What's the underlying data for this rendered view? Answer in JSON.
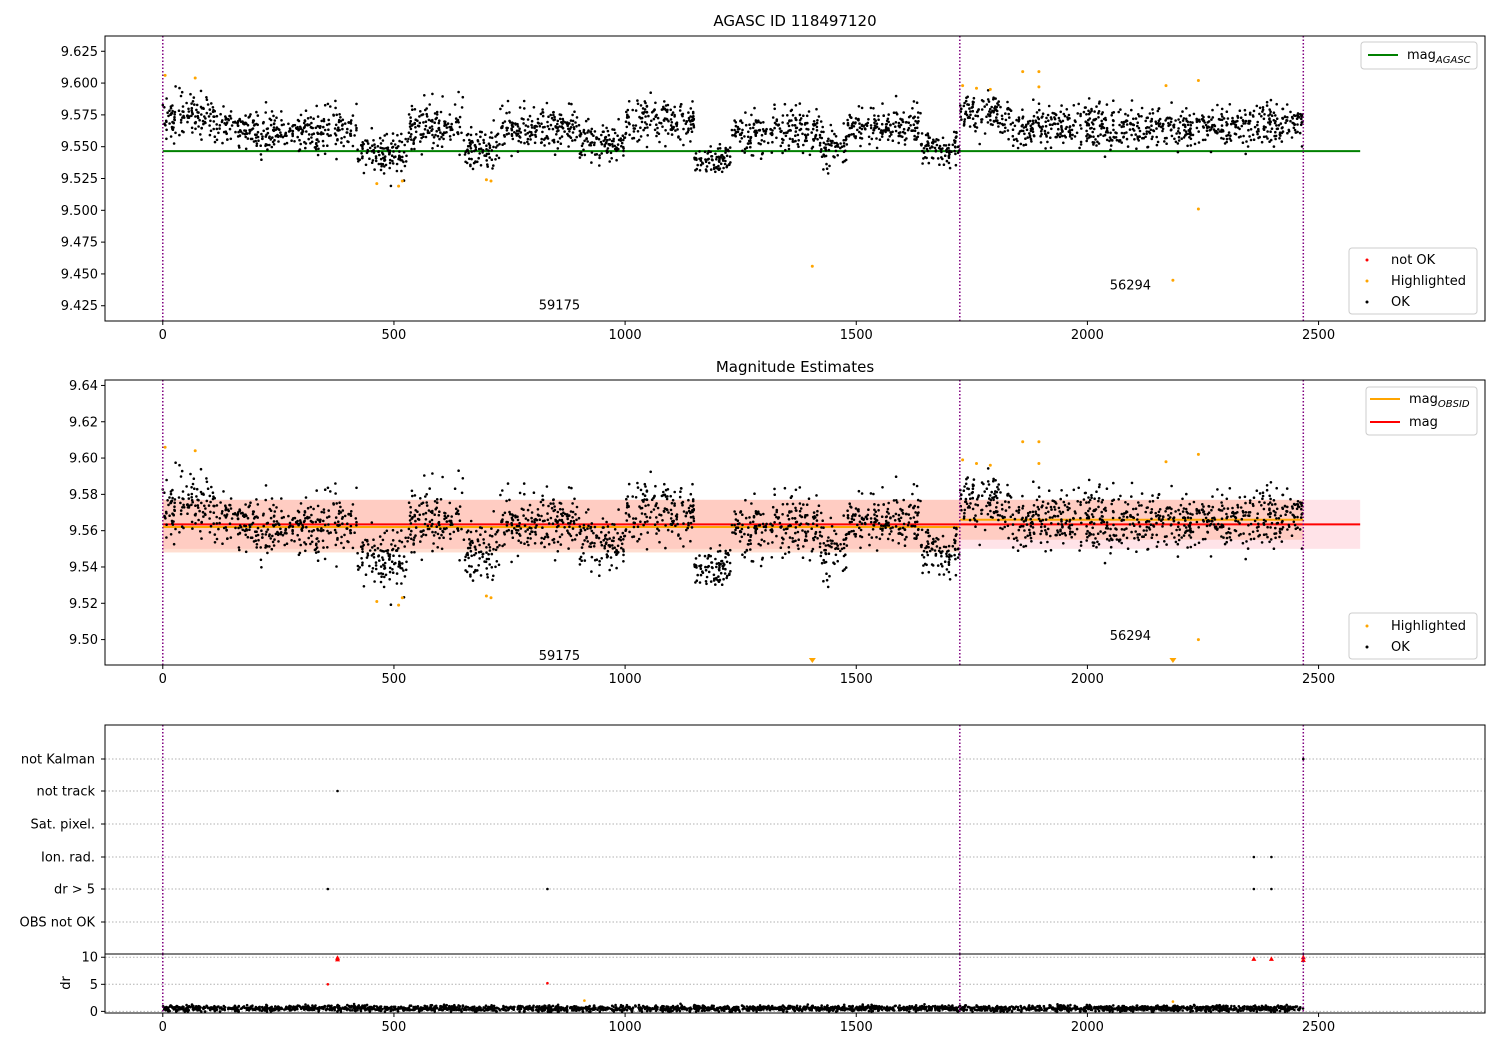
{
  "colors": {
    "ok": "#000000",
    "not_ok": "#ff0000",
    "highlighted": "#ffa500",
    "mag_agasc_line": "#008000",
    "mag_obsid_line": "#ffa500",
    "mag_line": "#ff0000",
    "band_red": "#ffc0cb",
    "band_orange": "#ffa07a",
    "obs_boundary": "#800080",
    "grid": "#b0b0b0"
  },
  "chart_data": [
    {
      "id": "panel-agasc",
      "type": "scatter",
      "title": "AGASC ID 118497120",
      "xlim": [
        -125,
        2860
      ],
      "ylim": [
        9.413,
        9.637
      ],
      "xticks": [
        0,
        500,
        1000,
        1500,
        2000,
        2500
      ],
      "yticks": [
        9.425,
        9.45,
        9.475,
        9.5,
        9.525,
        9.55,
        9.575,
        9.6,
        9.625
      ],
      "ytick_labels": [
        "9.425",
        "9.450",
        "9.475",
        "9.500",
        "9.525",
        "9.550",
        "9.575",
        "9.600",
        "9.625"
      ],
      "obs_boundaries": [
        0,
        1724,
        2467
      ],
      "obsid_labels": [
        {
          "text": "59175",
          "x": 858,
          "y": 9.425
        },
        {
          "text": "56294",
          "x": 2093,
          "y": 9.441
        }
      ],
      "hlines": [
        {
          "name": "mag",
          "subscript": "AGASC",
          "y": 9.5465,
          "x0": 0,
          "x1": 2590,
          "color": "#008000"
        }
      ],
      "line_legend": [
        {
          "label": "mag",
          "subscript": "AGASC",
          "color": "#008000"
        }
      ],
      "marker_legend": [
        {
          "label": "not OK",
          "color": "#ff0000"
        },
        {
          "label": "Highlighted",
          "color": "#ffa500"
        },
        {
          "label": "OK",
          "color": "#000000"
        }
      ],
      "highlighted_points": [
        [
          5,
          9.606
        ],
        [
          70,
          9.604
        ],
        [
          463,
          9.521
        ],
        [
          510,
          9.519
        ],
        [
          518,
          9.523
        ],
        [
          700,
          9.524
        ],
        [
          710,
          9.523
        ],
        [
          1405,
          9.456
        ],
        [
          1730,
          9.598
        ],
        [
          1760,
          9.596
        ],
        [
          1790,
          9.595
        ],
        [
          1860,
          9.609
        ],
        [
          1895,
          9.609
        ],
        [
          1895,
          9.597
        ],
        [
          2170,
          9.598
        ],
        [
          2185,
          9.445
        ],
        [
          2240,
          9.602
        ],
        [
          2240,
          9.501
        ]
      ],
      "ok_segments": [
        {
          "x0": 0,
          "x1": 110,
          "y": 9.574,
          "spread": 0.011
        },
        {
          "x0": 110,
          "x1": 200,
          "y": 9.565,
          "spread": 0.009
        },
        {
          "x0": 200,
          "x1": 330,
          "y": 9.56,
          "spread": 0.011
        },
        {
          "x0": 330,
          "x1": 420,
          "y": 9.565,
          "spread": 0.013
        },
        {
          "x0": 420,
          "x1": 530,
          "y": 9.545,
          "spread": 0.012
        },
        {
          "x0": 530,
          "x1": 650,
          "y": 9.567,
          "spread": 0.012
        },
        {
          "x0": 650,
          "x1": 730,
          "y": 9.547,
          "spread": 0.011
        },
        {
          "x0": 730,
          "x1": 900,
          "y": 9.565,
          "spread": 0.012
        },
        {
          "x0": 900,
          "x1": 1000,
          "y": 9.553,
          "spread": 0.011
        },
        {
          "x0": 1000,
          "x1": 1150,
          "y": 9.57,
          "spread": 0.011
        },
        {
          "x0": 1150,
          "x1": 1230,
          "y": 9.54,
          "spread": 0.008
        },
        {
          "x0": 1230,
          "x1": 1420,
          "y": 9.562,
          "spread": 0.012
        },
        {
          "x0": 1420,
          "x1": 1480,
          "y": 9.55,
          "spread": 0.011
        },
        {
          "x0": 1480,
          "x1": 1640,
          "y": 9.566,
          "spread": 0.01
        },
        {
          "x0": 1640,
          "x1": 1724,
          "y": 9.548,
          "spread": 0.009
        },
        {
          "x0": 1724,
          "x1": 1830,
          "y": 9.575,
          "spread": 0.01
        },
        {
          "x0": 1830,
          "x1": 2300,
          "y": 9.565,
          "spread": 0.011
        },
        {
          "x0": 2300,
          "x1": 2467,
          "y": 9.567,
          "spread": 0.011
        }
      ]
    },
    {
      "id": "panel-magnitude",
      "type": "scatter",
      "title": "Magnitude Estimates",
      "xlim": [
        -125,
        2860
      ],
      "ylim": [
        9.486,
        9.643
      ],
      "xticks": [
        0,
        500,
        1000,
        1500,
        2000,
        2500
      ],
      "yticks": [
        9.5,
        9.52,
        9.54,
        9.56,
        9.58,
        9.6,
        9.62,
        9.64
      ],
      "ytick_labels": [
        "9.50",
        "9.52",
        "9.54",
        "9.56",
        "9.58",
        "9.60",
        "9.62",
        "9.64"
      ],
      "obs_boundaries": [
        0,
        1724,
        2467
      ],
      "obsid_labels": [
        {
          "text": "59175",
          "x": 858,
          "y": 9.491
        },
        {
          "text": "56294",
          "x": 2093,
          "y": 9.502
        }
      ],
      "bands": [
        {
          "name": "mag",
          "color": "#ffc0cb",
          "x0": 0,
          "x1": 2590,
          "y0": 9.55,
          "y1": 9.577
        },
        {
          "name": "mag_OBSID 59175",
          "color": "#ffa07a",
          "x0": 0,
          "x1": 1724,
          "y0": 9.548,
          "y1": 9.577
        },
        {
          "name": "mag_OBSID 56294",
          "color": "#ffa07a",
          "x0": 1724,
          "x1": 2467,
          "y0": 9.555,
          "y1": 9.577
        }
      ],
      "hlines": [
        {
          "name": "mag",
          "y": 9.5635,
          "x0": 0,
          "x1": 2590,
          "color": "#ff0000"
        },
        {
          "name": "mag_OBSID 59175",
          "y": 9.562,
          "x0": 0,
          "x1": 1724,
          "color": "#ffa500"
        },
        {
          "name": "mag_OBSID 56294",
          "y": 9.566,
          "x0": 1724,
          "x1": 2467,
          "color": "#ffa500"
        }
      ],
      "line_legend": [
        {
          "label": "mag",
          "subscript": "OBSID",
          "color": "#ffa500"
        },
        {
          "label": "mag",
          "subscript": "",
          "color": "#ff0000"
        }
      ],
      "marker_legend": [
        {
          "label": "Highlighted",
          "color": "#ffa500"
        },
        {
          "label": "OK",
          "color": "#000000"
        }
      ],
      "highlighted_points": [
        [
          5,
          9.606
        ],
        [
          70,
          9.604
        ],
        [
          463,
          9.521
        ],
        [
          510,
          9.519
        ],
        [
          518,
          9.523
        ],
        [
          700,
          9.524
        ],
        [
          710,
          9.523
        ],
        [
          1730,
          9.599
        ],
        [
          1760,
          9.597
        ],
        [
          1790,
          9.596
        ],
        [
          1860,
          9.609
        ],
        [
          1895,
          9.609
        ],
        [
          1895,
          9.597
        ],
        [
          2170,
          9.598
        ],
        [
          2240,
          9.602
        ],
        [
          2240,
          9.5
        ]
      ],
      "out_of_range_markers": [
        [
          1405,
          9.487
        ],
        [
          2185,
          9.487
        ]
      ],
      "ok_segments": [
        {
          "x0": 0,
          "x1": 110,
          "y": 9.574,
          "spread": 0.011
        },
        {
          "x0": 110,
          "x1": 200,
          "y": 9.565,
          "spread": 0.009
        },
        {
          "x0": 200,
          "x1": 330,
          "y": 9.56,
          "spread": 0.011
        },
        {
          "x0": 330,
          "x1": 420,
          "y": 9.565,
          "spread": 0.013
        },
        {
          "x0": 420,
          "x1": 530,
          "y": 9.545,
          "spread": 0.012
        },
        {
          "x0": 530,
          "x1": 650,
          "y": 9.567,
          "spread": 0.012
        },
        {
          "x0": 650,
          "x1": 730,
          "y": 9.547,
          "spread": 0.011
        },
        {
          "x0": 730,
          "x1": 900,
          "y": 9.565,
          "spread": 0.012
        },
        {
          "x0": 900,
          "x1": 1000,
          "y": 9.553,
          "spread": 0.011
        },
        {
          "x0": 1000,
          "x1": 1150,
          "y": 9.57,
          "spread": 0.011
        },
        {
          "x0": 1150,
          "x1": 1230,
          "y": 9.54,
          "spread": 0.008
        },
        {
          "x0": 1230,
          "x1": 1420,
          "y": 9.562,
          "spread": 0.012
        },
        {
          "x0": 1420,
          "x1": 1480,
          "y": 9.55,
          "spread": 0.011
        },
        {
          "x0": 1480,
          "x1": 1640,
          "y": 9.566,
          "spread": 0.01
        },
        {
          "x0": 1640,
          "x1": 1724,
          "y": 9.548,
          "spread": 0.009
        },
        {
          "x0": 1724,
          "x1": 1830,
          "y": 9.575,
          "spread": 0.01
        },
        {
          "x0": 1830,
          "x1": 2300,
          "y": 9.565,
          "spread": 0.011
        },
        {
          "x0": 2300,
          "x1": 2467,
          "y": 9.567,
          "spread": 0.011
        }
      ]
    },
    {
      "id": "panel-flags",
      "type": "scatter",
      "title": "",
      "xlim": [
        -125,
        2860
      ],
      "obs_boundaries": [
        0,
        1724,
        2467
      ],
      "categories": [
        "not Kalman",
        "not track",
        "Sat. pixel.",
        "Ion. rad.",
        "dr > 5",
        "OBS not OK"
      ],
      "flag_points": [
        {
          "category": "not Kalman",
          "x": [
            2467
          ]
        },
        {
          "category": "not track",
          "x": [
            378
          ]
        },
        {
          "category": "Sat. pixel.",
          "x": []
        },
        {
          "category": "Ion. rad.",
          "x": [
            2360,
            2398
          ]
        },
        {
          "category": "dr > 5",
          "x": [
            357,
            832,
            2360,
            2398
          ]
        },
        {
          "category": "OBS not OK",
          "x": []
        }
      ]
    },
    {
      "id": "panel-dr",
      "type": "scatter",
      "title": "",
      "ylabel": "dr",
      "xlim": [
        -125,
        2860
      ],
      "ylim": [
        -0.3,
        10.6
      ],
      "xticks": [
        0,
        500,
        1000,
        1500,
        2000,
        2500
      ],
      "yticks": [
        0,
        5,
        10
      ],
      "ytick_labels": [
        "0",
        "5",
        "10"
      ],
      "obs_boundaries": [
        0,
        1724,
        2467
      ],
      "not_ok_points": [
        [
          357,
          5.0
        ],
        [
          378,
          9.6
        ],
        [
          378,
          9.9
        ],
        [
          832,
          5.2
        ],
        [
          2360,
          9.7
        ],
        [
          2398,
          9.7
        ],
        [
          2467,
          9.5
        ],
        [
          2467,
          10.0
        ]
      ],
      "highlighted_points": [
        [
          912,
          2.0
        ],
        [
          2185,
          1.8
        ]
      ],
      "ok_baseline": {
        "x0": 0,
        "x1": 2467,
        "y": 0.55,
        "spread": 0.45
      }
    }
  ]
}
